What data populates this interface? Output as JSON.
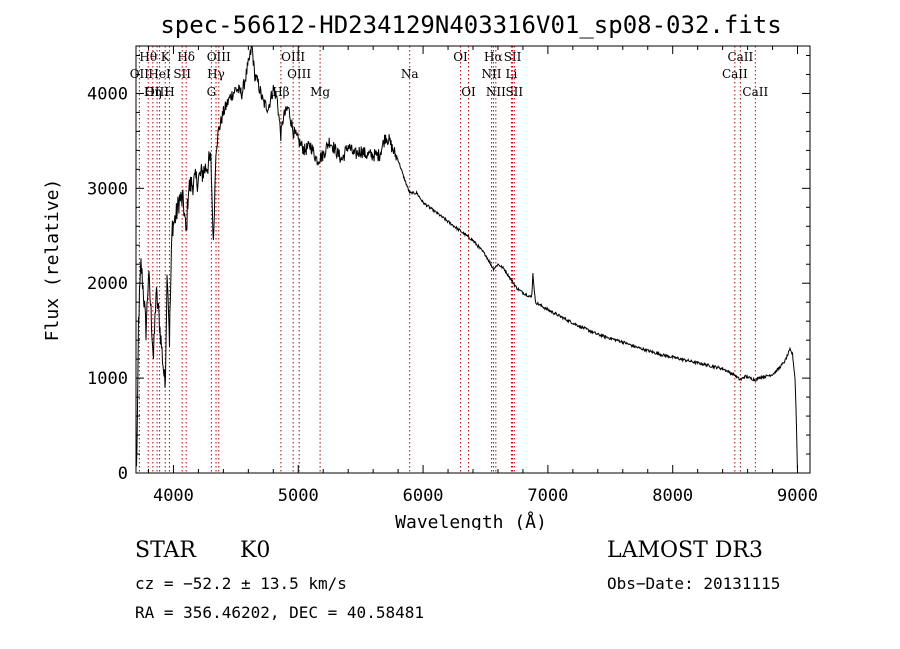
{
  "chart_data": {
    "type": "line",
    "title": "spec-56612-HD234129N403316V01_sp08-032.fits",
    "xlabel": "Wavelength (Å)",
    "ylabel": "Flux (relative)",
    "xlim": [
      3700,
      9100
    ],
    "ylim": [
      0,
      4500
    ],
    "xticks": [
      4000,
      5000,
      6000,
      7000,
      8000,
      9000
    ],
    "yticks": [
      0,
      1000,
      2000,
      3000,
      4000
    ],
    "series": [
      {
        "name": "flux",
        "x": [
          3700,
          3710,
          3720,
          3740,
          3760,
          3780,
          3800,
          3820,
          3840,
          3860,
          3880,
          3900,
          3920,
          3933,
          3950,
          3968,
          3990,
          4020,
          4050,
          4080,
          4102,
          4120,
          4150,
          4200,
          4250,
          4300,
          4320,
          4340,
          4360,
          4400,
          4450,
          4500,
          4550,
          4600,
          4630,
          4650,
          4680,
          4720,
          4760,
          4800,
          4830,
          4861,
          4880,
          4920,
          4960,
          5000,
          5050,
          5100,
          5150,
          5200,
          5250,
          5300,
          5350,
          5400,
          5450,
          5500,
          5550,
          5600,
          5650,
          5700,
          5730,
          5760,
          5800,
          5850,
          5893,
          5950,
          6000,
          6100,
          6200,
          6300,
          6400,
          6500,
          6563,
          6600,
          6650,
          6700,
          6750,
          6800,
          6870,
          6880,
          6900,
          7000,
          7100,
          7200,
          7300,
          7400,
          7500,
          7600,
          7700,
          7800,
          7900,
          8000,
          8100,
          8200,
          8300,
          8400,
          8498,
          8542,
          8580,
          8620,
          8662,
          8700,
          8750,
          8800,
          8850,
          8900,
          8940,
          8960,
          8980,
          8990,
          9000
        ],
        "y": [
          20,
          300,
          1600,
          2200,
          1900,
          1500,
          2100,
          1700,
          1200,
          1900,
          1700,
          1400,
          1100,
          900,
          2200,
          1400,
          2600,
          2700,
          2900,
          2850,
          2500,
          3000,
          3050,
          3100,
          3200,
          3300,
          2400,
          3400,
          3600,
          3800,
          3950,
          4050,
          4000,
          4300,
          4500,
          4200,
          4100,
          3900,
          3850,
          4050,
          3950,
          3550,
          3750,
          3850,
          3600,
          3500,
          3400,
          3450,
          3300,
          3350,
          3500,
          3400,
          3300,
          3450,
          3350,
          3400,
          3350,
          3350,
          3350,
          3550,
          3500,
          3400,
          3300,
          3100,
          2950,
          2950,
          2850,
          2750,
          2650,
          2550,
          2450,
          2300,
          2150,
          2200,
          2150,
          2050,
          1950,
          1900,
          1850,
          2100,
          1800,
          1720,
          1650,
          1580,
          1520,
          1460,
          1420,
          1380,
          1330,
          1290,
          1250,
          1220,
          1190,
          1160,
          1130,
          1100,
          1030,
          980,
          1020,
          1000,
          980,
          1010,
          1020,
          1040,
          1100,
          1180,
          1300,
          1250,
          1000,
          600,
          0
        ]
      }
    ],
    "lines": [
      {
        "name": "OII",
        "wl": 3727,
        "row": 1
      },
      {
        "name": "Hθ",
        "wl": 3798,
        "row": 0
      },
      {
        "name": "OIII",
        "wl": 3869,
        "row": 2
      },
      {
        "name": "K",
        "wl": 3934,
        "row": 0
      },
      {
        "name": "HeI",
        "wl": 3889,
        "row": 1
      },
      {
        "name": "Hη",
        "wl": 3835,
        "row": 2
      },
      {
        "name": "SII",
        "wl": 4070,
        "row": 1
      },
      {
        "name": "H",
        "wl": 3968,
        "row": 2
      },
      {
        "name": "Hδ",
        "wl": 4102,
        "row": 0
      },
      {
        "name": "OIII",
        "wl": 4363,
        "row": 0
      },
      {
        "name": "Hγ",
        "wl": 4341,
        "row": 1
      },
      {
        "name": "G",
        "wl": 4304,
        "row": 2
      },
      {
        "name": "Hβ",
        "wl": 4861,
        "row": 2
      },
      {
        "name": "OIII",
        "wl": 4959,
        "row": 0
      },
      {
        "name": "OIII",
        "wl": 5007,
        "row": 1
      },
      {
        "name": "Mg",
        "wl": 5175,
        "row": 2
      },
      {
        "name": "Na",
        "wl": 5893,
        "row": 1
      },
      {
        "name": "OI",
        "wl": 6300,
        "row": 0
      },
      {
        "name": "OI",
        "wl": 6364,
        "row": 2
      },
      {
        "name": "Hα",
        "wl": 6563,
        "row": 0
      },
      {
        "name": "NII",
        "wl": 6548,
        "row": 1
      },
      {
        "name": "NII",
        "wl": 6583,
        "row": 2
      },
      {
        "name": "SII",
        "wl": 6717,
        "row": 0
      },
      {
        "name": "Li",
        "wl": 6708,
        "row": 1
      },
      {
        "name": "SII",
        "wl": 6731,
        "row": 2
      },
      {
        "name": "CaII",
        "wl": 8542,
        "row": 0
      },
      {
        "name": "CaII",
        "wl": 8498,
        "row": 1
      },
      {
        "name": "CaII",
        "wl": 8662,
        "row": 2
      }
    ]
  },
  "info": {
    "object_class": "STAR",
    "subclass": "K0",
    "survey": "LAMOST DR3",
    "cz": "cz = −52.2 ± 13.5 km/s",
    "obs_date": "Obs−Date: 20131115",
    "radec": "RA = 356.46202, DEC =  40.58481"
  }
}
